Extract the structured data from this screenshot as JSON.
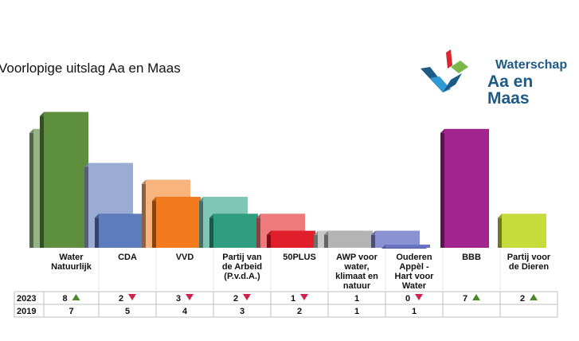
{
  "title": "Voorlopige uitslag Aa en Maas",
  "logo": {
    "line1": "Waterschap",
    "line2": "Aa en Maas"
  },
  "chart_data": {
    "type": "bar",
    "title": "Voorlopige uitslag Aa en Maas",
    "categories": [
      [
        "Water",
        "Natuurlijk"
      ],
      [
        "CDA"
      ],
      [
        "VVD"
      ],
      [
        "Partij van",
        "de Arbeid",
        "(P.v.d.A.)"
      ],
      [
        "50PLUS"
      ],
      [
        "AWP voor",
        "water,",
        "klimaat en",
        "natuur"
      ],
      [
        "Ouderen",
        "Appèl -",
        "Hart voor",
        "Water"
      ],
      [
        "BBB"
      ],
      [
        "Partij voor",
        "de Dieren"
      ]
    ],
    "series": [
      {
        "name": "2023",
        "values": [
          8,
          2,
          3,
          2,
          1,
          1,
          0,
          7,
          2
        ],
        "trend": [
          "up",
          "down",
          "down",
          "down",
          "down",
          "",
          "down",
          "up",
          "up"
        ]
      },
      {
        "name": "2019",
        "values": [
          7,
          5,
          4,
          3,
          2,
          1,
          1,
          null,
          null
        ]
      }
    ],
    "colors": [
      {
        "back": "#95b485",
        "front": "#5d8f3e"
      },
      {
        "back": "#9aacd4",
        "front": "#5d7cbd"
      },
      {
        "back": "#f8b47c",
        "front": "#f47a1f"
      },
      {
        "back": "#7fc6b5",
        "front": "#2f9e80"
      },
      {
        "back": "#ef7a7c",
        "front": "#e01f2a"
      },
      {
        "back": "#c8c8c8",
        "front": "#b4b4b4"
      },
      {
        "back": "#8b92d4",
        "front": "#6a74c4"
      },
      {
        "back": "#a2248f",
        "front": "#a2248f"
      },
      {
        "back": "#c5dc3a",
        "front": "#c5dc3a"
      }
    ],
    "up_color": "#4a8a2a",
    "down_color": "#d0214a",
    "grid": false,
    "legend": "table-below"
  }
}
